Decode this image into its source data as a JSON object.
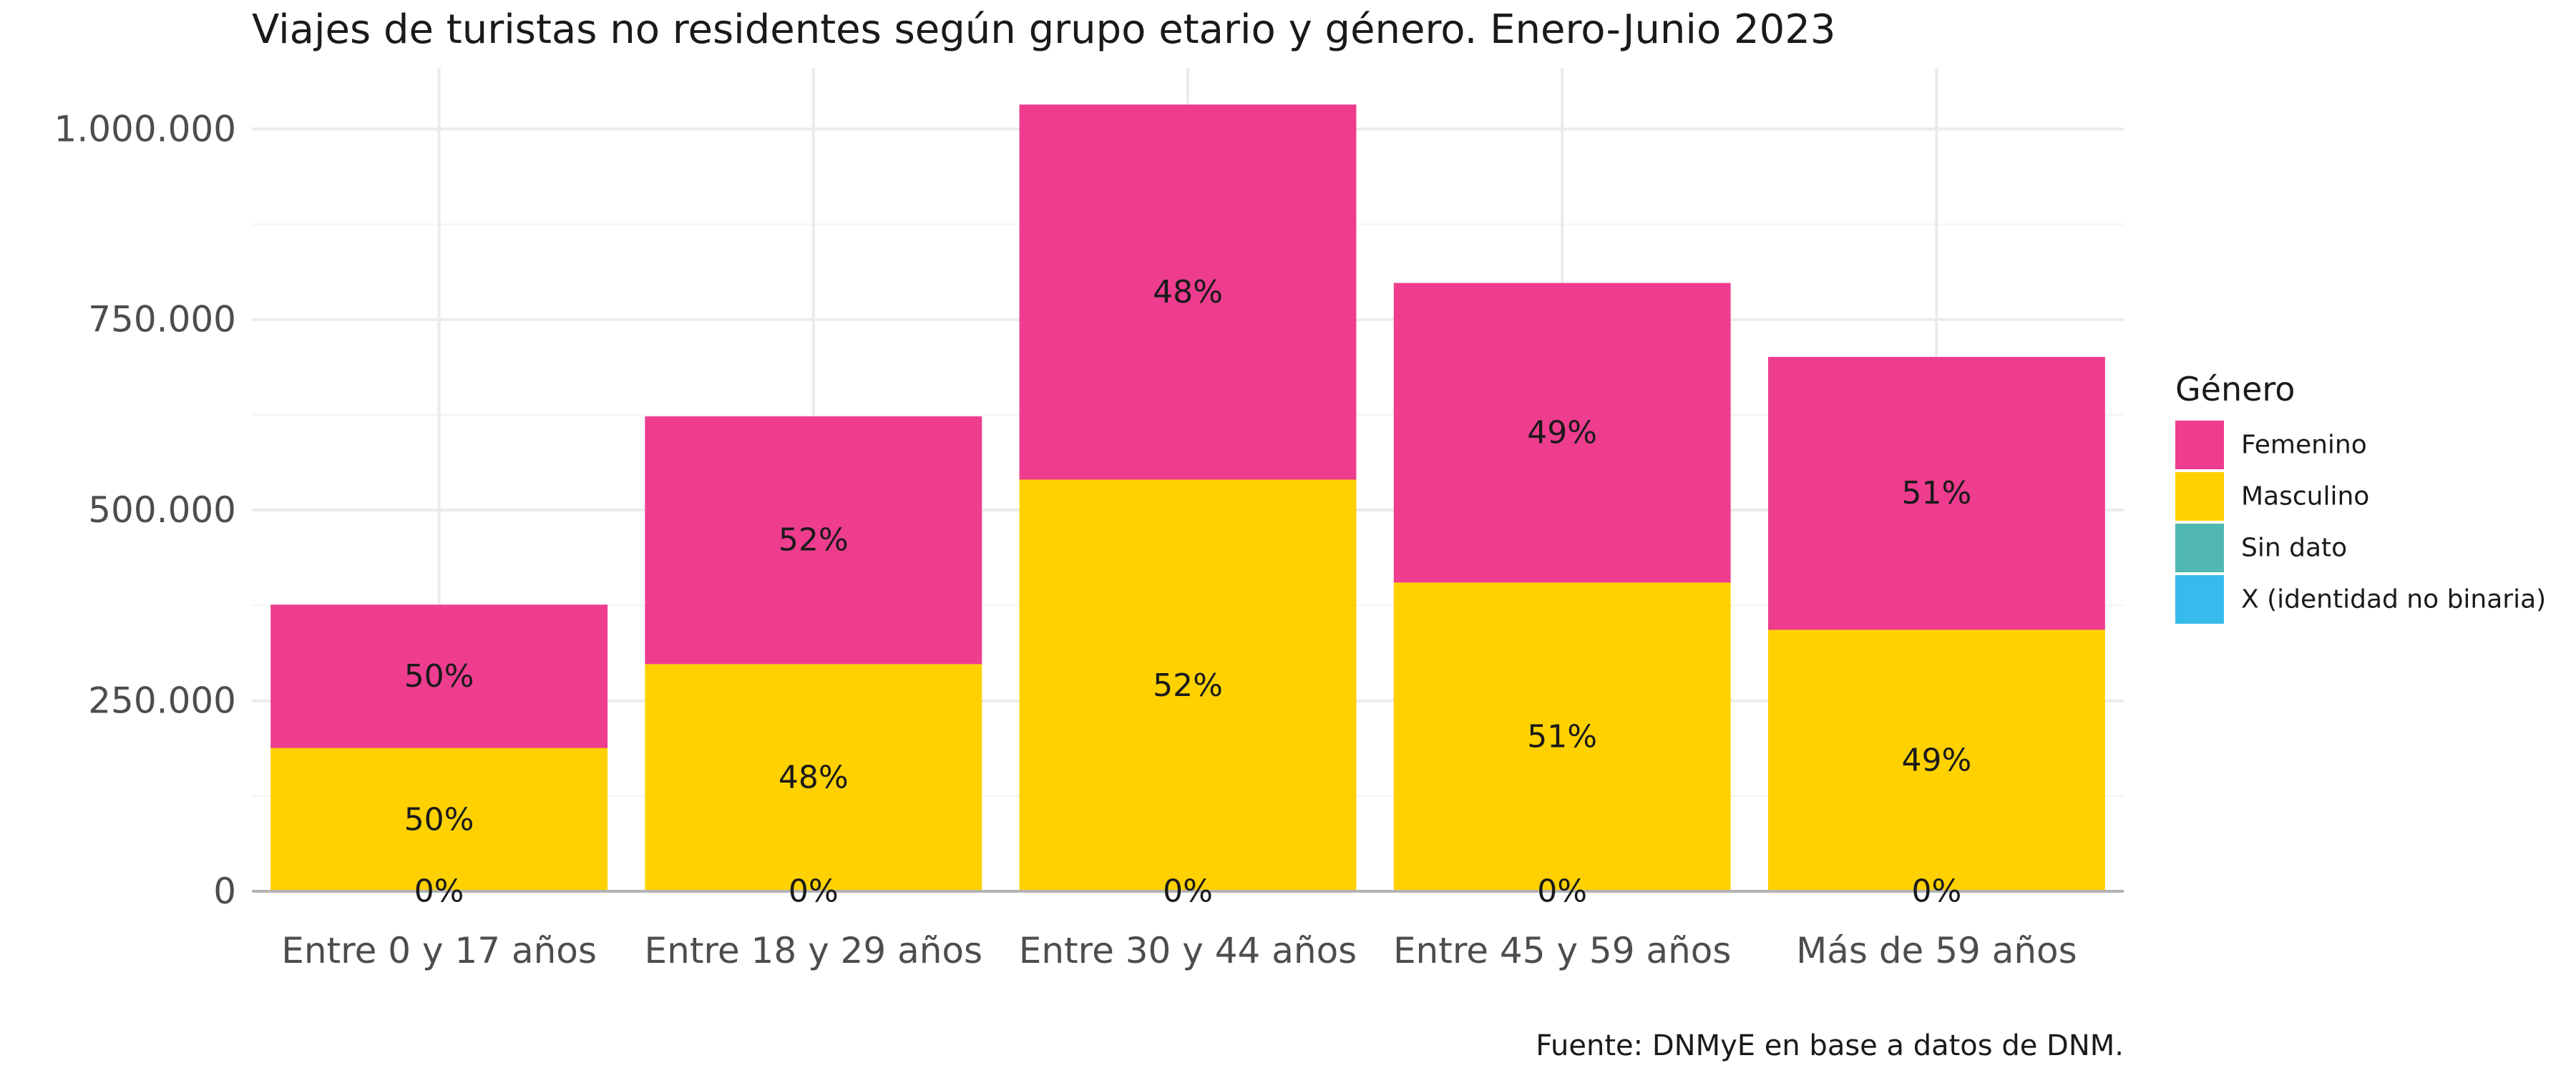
{
  "chart_data": {
    "type": "bar",
    "stacked": true,
    "title": "Viajes de turistas no residentes según grupo etario y género. Enero-Junio 2023",
    "caption": "Fuente: DNMyE en base a datos de DNM.",
    "categories": [
      "Entre 0 y 17 años",
      "Entre 18 y 29 años",
      "Entre 30 y 44 años",
      "Entre 45 y 59 años",
      "Más de 59 años"
    ],
    "series": [
      {
        "name": "Femenino",
        "color": "#ee3d8f",
        "values": [
          188000,
          325000,
          492000,
          393000,
          358000
        ],
        "labels": [
          "50%",
          "52%",
          "48%",
          "49%",
          "51%"
        ]
      },
      {
        "name": "Masculino",
        "color": "#ffd100",
        "values": [
          188000,
          298000,
          540000,
          405000,
          343000
        ],
        "labels": [
          "50%",
          "48%",
          "52%",
          "51%",
          "49%"
        ]
      },
      {
        "name": "Sin dato",
        "color": "#50b8b1",
        "values": [
          0,
          0,
          0,
          0,
          0
        ],
        "labels": [
          "0%",
          "0%",
          "0%",
          "0%",
          "0%"
        ]
      },
      {
        "name": "X (identidad no binaria)",
        "color": "#37bbed",
        "values": [
          0,
          0,
          0,
          0,
          0
        ],
        "labels": [
          "",
          "",
          "",
          "",
          ""
        ]
      }
    ],
    "ylim": [
      0,
      1000000
    ],
    "ymax_data": 1080000,
    "yticks": [
      0,
      250000,
      500000,
      750000,
      1000000
    ],
    "ytick_labels": [
      "0",
      "250.000",
      "500.000",
      "750.000",
      "1.000.000"
    ],
    "xlabel": "",
    "ylabel": "",
    "grid": true,
    "legend": {
      "title": "Género",
      "position": "right"
    }
  }
}
